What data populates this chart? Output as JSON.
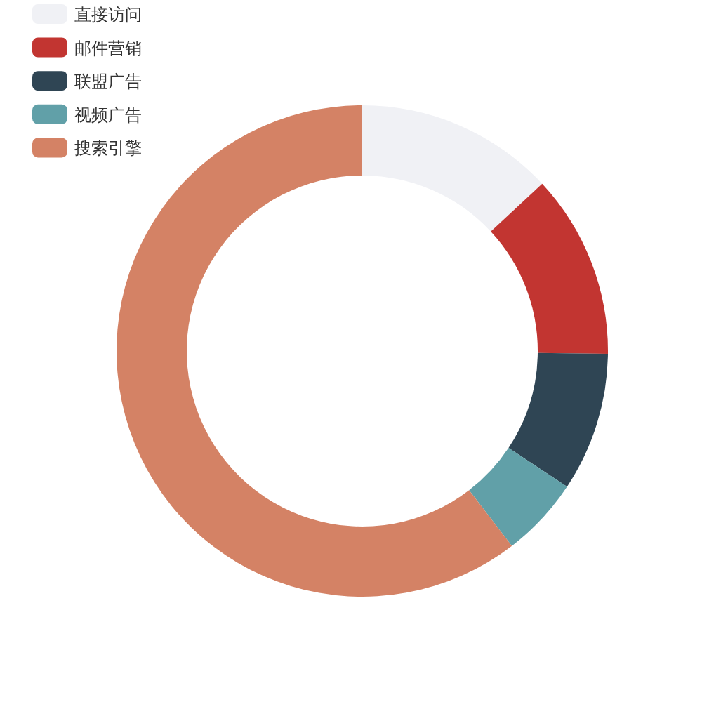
{
  "chart_data": {
    "type": "donut",
    "categories": [
      "直接访问",
      "邮件营销",
      "联盟广告",
      "视频广告",
      "搜索引擎"
    ],
    "values": [
      13.08,
      12.1,
      9.13,
      5.27,
      60.42
    ],
    "colors": [
      "#f0f1f5",
      "#c23531",
      "#2f4554",
      "#61a0a8",
      "#d48265"
    ],
    "legend": "top left"
  }
}
